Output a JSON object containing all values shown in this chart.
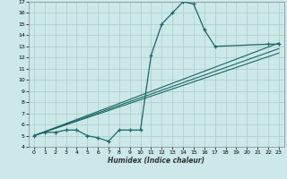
{
  "xlabel": "Humidex (Indice chaleur)",
  "bg_color": "#cce8e8",
  "grid_color": "#aacccc",
  "line_color": "#1a6666",
  "xlim": [
    -0.5,
    23.5
  ],
  "ylim": [
    4,
    17
  ],
  "xticks": [
    0,
    1,
    2,
    3,
    4,
    5,
    6,
    7,
    8,
    9,
    10,
    11,
    12,
    13,
    14,
    15,
    16,
    17,
    18,
    19,
    20,
    21,
    22,
    23
  ],
  "yticks": [
    4,
    5,
    6,
    7,
    8,
    9,
    10,
    11,
    12,
    13,
    14,
    15,
    16,
    17
  ],
  "main_x": [
    0,
    1,
    2,
    3,
    4,
    5,
    6,
    7,
    8,
    9,
    10,
    11,
    12,
    13,
    14,
    15,
    16,
    17,
    22,
    23
  ],
  "main_y": [
    5.0,
    5.3,
    5.3,
    5.5,
    5.5,
    5.0,
    4.8,
    4.5,
    5.5,
    5.5,
    5.5,
    12.2,
    15.0,
    16.0,
    17.0,
    16.8,
    14.5,
    13.0,
    13.2,
    13.2
  ],
  "trend1_x": [
    0,
    23
  ],
  "trend1_y": [
    5.0,
    13.3
  ],
  "trend2_x": [
    0,
    23
  ],
  "trend2_y": [
    5.0,
    12.8
  ],
  "trend3_x": [
    0,
    23
  ],
  "trend3_y": [
    5.0,
    12.4
  ]
}
